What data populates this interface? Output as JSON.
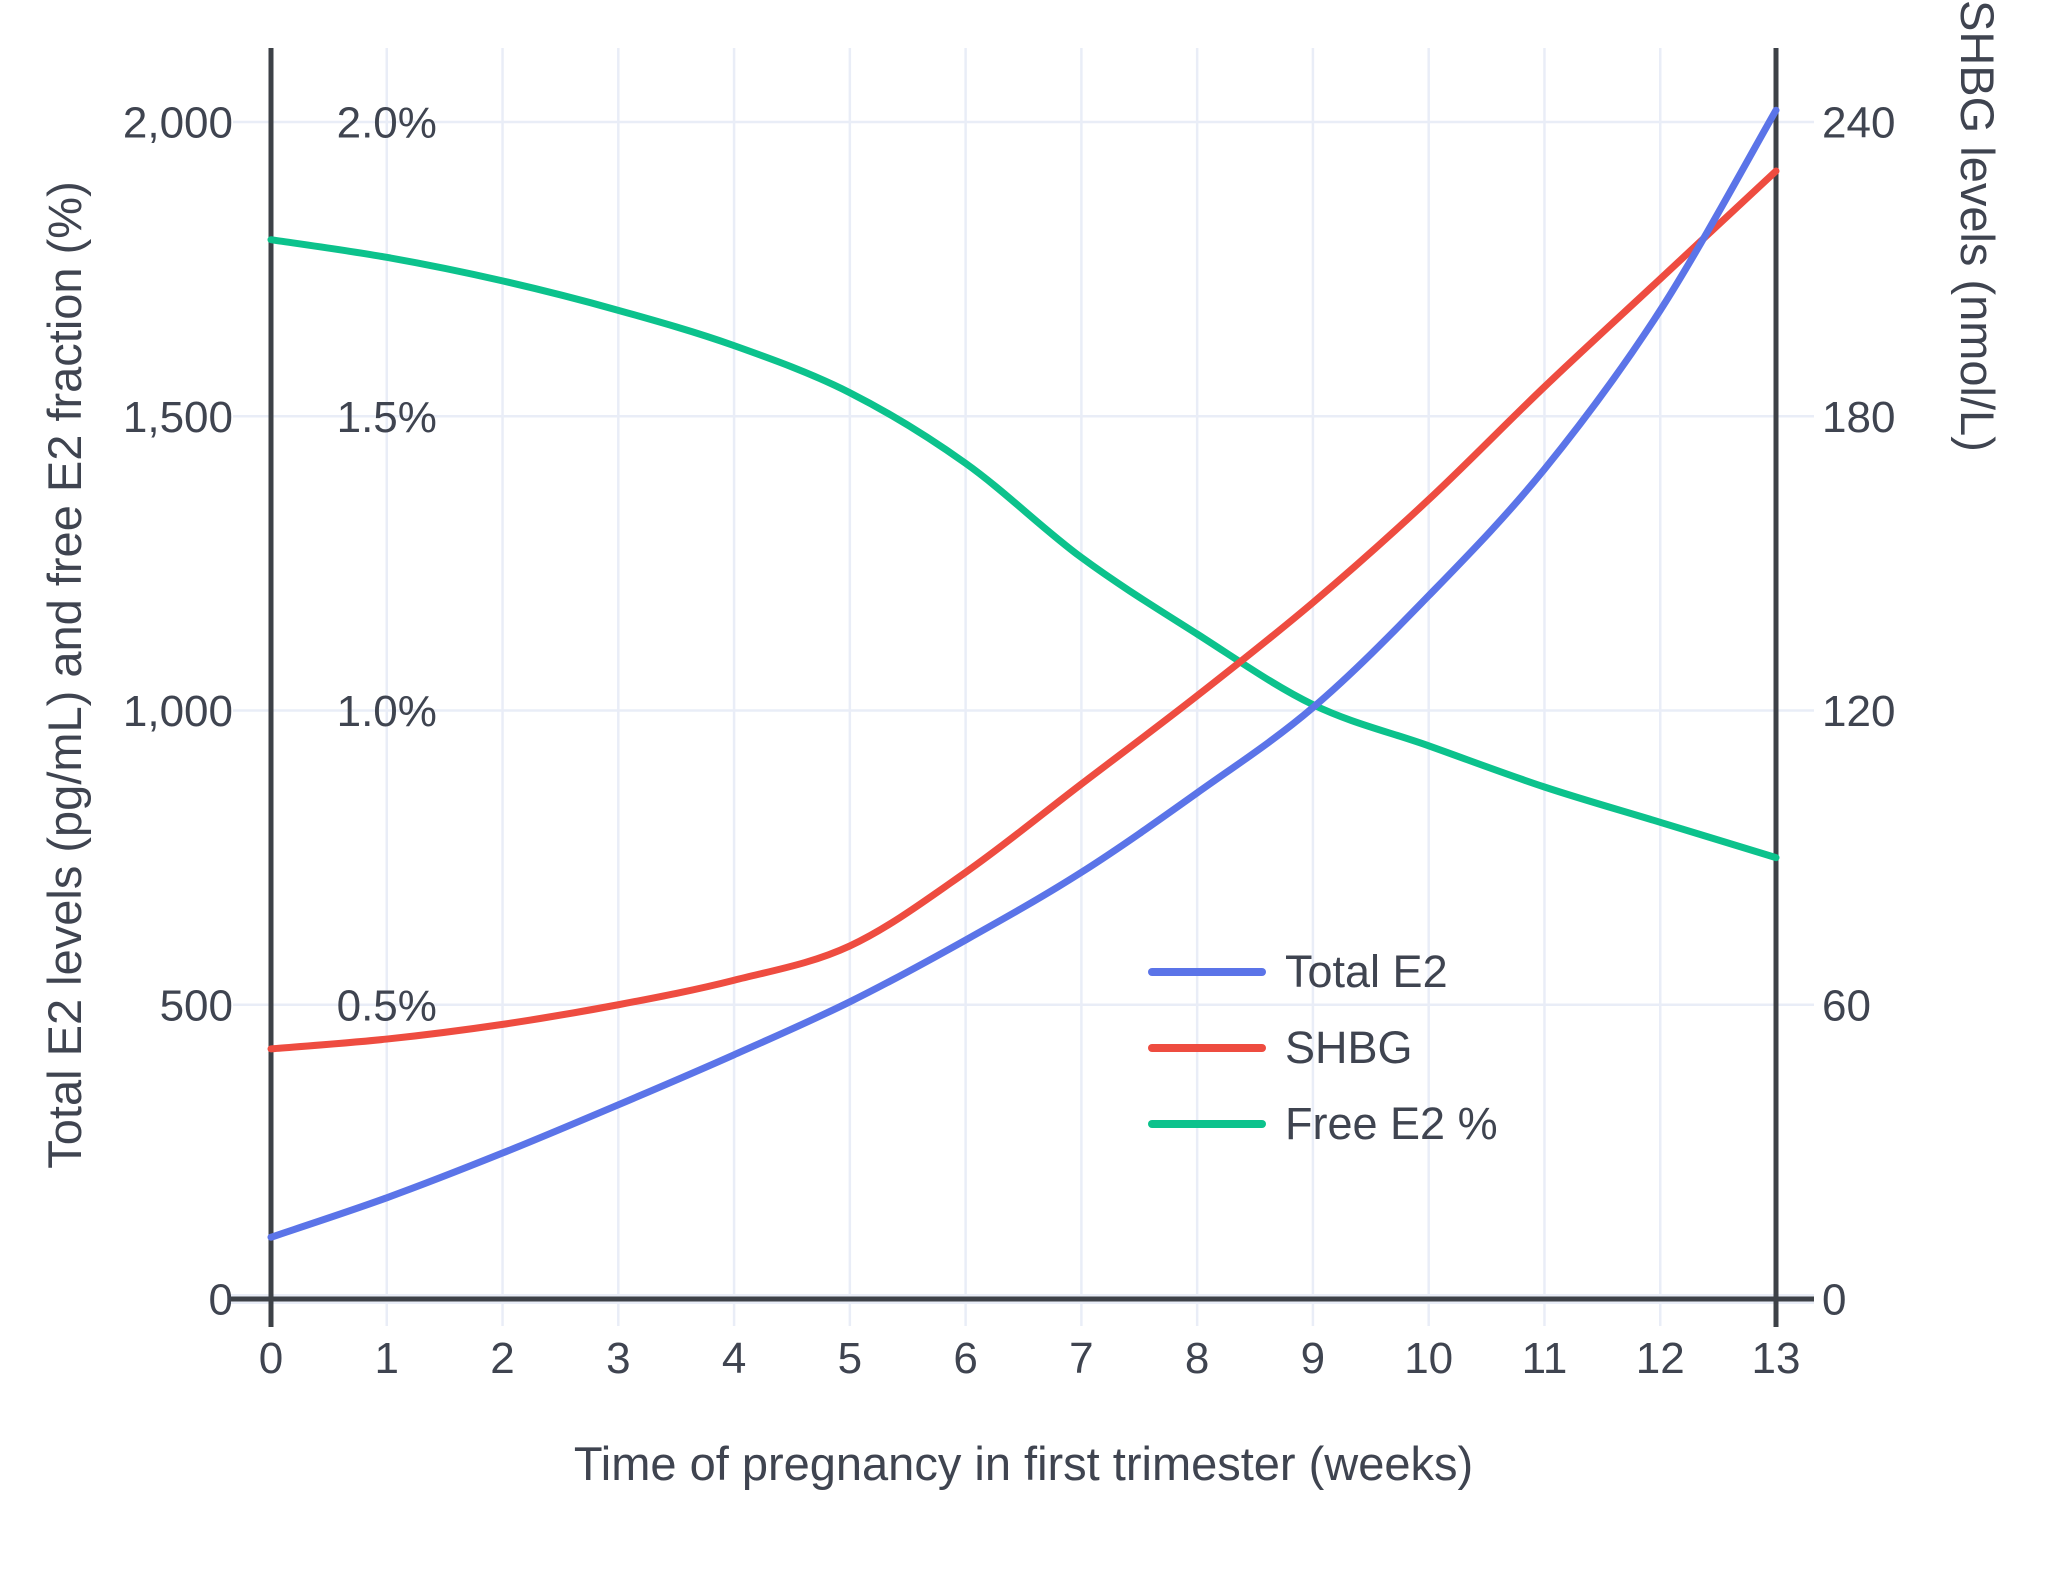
{
  "chart_data": {
    "type": "line",
    "title": "",
    "x_label": "Time of pregnancy in first trimester (weeks)",
    "y_left_label": "Total E2 levels (pg/mL) and free E2 fraction (%)",
    "y_right_label": "SHBG levels (nmol/L)",
    "x": [
      0,
      1,
      2,
      3,
      4,
      5,
      6,
      7,
      8,
      9,
      10,
      11,
      12,
      13
    ],
    "x_tick_labels": [
      "0",
      "1",
      "2",
      "3",
      "4",
      "5",
      "6",
      "7",
      "8",
      "9",
      "10",
      "11",
      "12",
      "13"
    ],
    "y_left_tick_values": [
      0,
      500,
      1000,
      1500,
      2000
    ],
    "y_left_tick_labels": [
      "0",
      "500",
      "1,000",
      "1,500",
      "2,000"
    ],
    "y_left_range": [
      0,
      2000
    ],
    "free_e2_pct_labels": [
      {
        "text": "0.5%",
        "left_value": 500
      },
      {
        "text": "1.0%",
        "left_value": 1000
      },
      {
        "text": "1.5%",
        "left_value": 1500
      },
      {
        "text": "2.0%",
        "left_value": 2000
      }
    ],
    "y_right_tick_values": [
      0,
      60,
      120,
      180,
      240
    ],
    "y_right_tick_labels": [
      "0",
      "60",
      "120",
      "180",
      "240"
    ],
    "y_right_range": [
      0,
      240
    ],
    "grid": true,
    "legend_position": "middle-right",
    "series": [
      {
        "name": "Total E2",
        "axis": "left",
        "unit": "pg/mL",
        "color": "#5b74e8",
        "values": [
          105,
          172,
          248,
          330,
          415,
          505,
          610,
          725,
          860,
          1005,
          1195,
          1410,
          1680,
          2020
        ]
      },
      {
        "name": "SHBG",
        "axis": "right",
        "unit": "nmol/L",
        "color": "#ee4c40",
        "values": [
          51,
          53,
          56,
          60,
          65,
          72,
          87,
          105,
          123,
          142,
          163,
          186,
          208,
          230
        ]
      },
      {
        "name": "Free E2 %",
        "axis": "left-as-percent",
        "unit": "%",
        "color": "#0cc28c",
        "values": [
          1.8,
          1.77,
          1.73,
          1.68,
          1.62,
          1.54,
          1.42,
          1.26,
          1.13,
          1.01,
          0.94,
          0.87,
          0.81,
          0.75
        ]
      }
    ]
  },
  "colors": {
    "grid": "#e9edf7",
    "axis": "#3d4147",
    "text": "#3f4450",
    "background": "#ffffff"
  }
}
